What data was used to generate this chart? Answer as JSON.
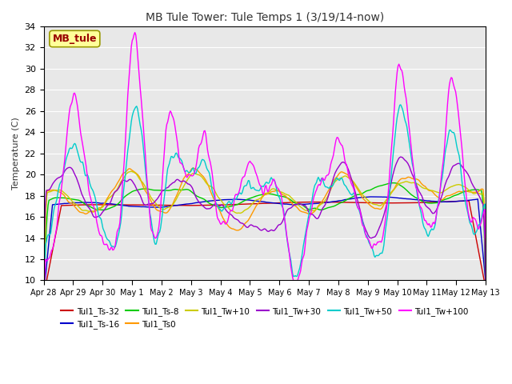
{
  "title": "MB Tule Tower: Tule Temps 1 (3/19/14-now)",
  "ylabel": "Temperature (C)",
  "ylim": [
    10,
    34
  ],
  "yticks": [
    10,
    12,
    14,
    16,
    18,
    20,
    22,
    24,
    26,
    28,
    30,
    32,
    34
  ],
  "background_color": "#ffffff",
  "plot_bg_color": "#e8e8e8",
  "series": [
    {
      "label": "Tul1_Ts-32",
      "color": "#cc0000",
      "linewidth": 1.0
    },
    {
      "label": "Tul1_Ts-16",
      "color": "#0000cc",
      "linewidth": 1.0
    },
    {
      "label": "Tul1_Ts-8",
      "color": "#00cc00",
      "linewidth": 1.0
    },
    {
      "label": "Tul1_Ts0",
      "color": "#ff9900",
      "linewidth": 1.0
    },
    {
      "label": "Tul1_Tw+10",
      "color": "#cccc00",
      "linewidth": 1.0
    },
    {
      "label": "Tul1_Tw+30",
      "color": "#9900cc",
      "linewidth": 1.0
    },
    {
      "label": "Tul1_Tw+50",
      "color": "#00cccc",
      "linewidth": 1.0
    },
    {
      "label": "Tul1_Tw+100",
      "color": "#ff00ff",
      "linewidth": 1.0
    }
  ],
  "xtick_labels": [
    "Apr 28",
    "Apr 29",
    "Apr 30",
    "May 1",
    "May 2",
    "May 3",
    "May 4",
    "May 5",
    "May 6",
    "May 7",
    "May 8",
    "May 9",
    "May 10",
    "May 11",
    "May 12",
    "May 13"
  ],
  "annotation": {
    "text": "MB_tule",
    "color": "#990000",
    "bg": "#ffff99",
    "edge": "#999900",
    "fontsize": 9
  },
  "figsize": [
    6.4,
    4.8
  ],
  "dpi": 100
}
